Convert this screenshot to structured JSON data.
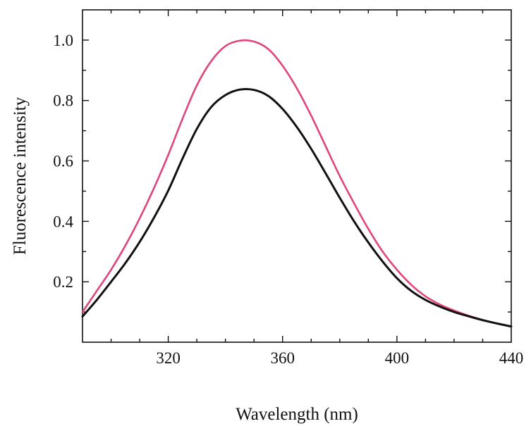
{
  "chart_data": {
    "type": "line",
    "title": "",
    "xlabel": "Wavelength (nm)",
    "ylabel": "Fluorescence intensity",
    "xlim": [
      290,
      440
    ],
    "ylim": [
      0,
      1.1
    ],
    "x_ticks": [
      320,
      360,
      400,
      440
    ],
    "x_tick_labels": [
      "320",
      "360",
      "400",
      "440"
    ],
    "x_minor_step": 10,
    "y_ticks": [
      0.2,
      0.4,
      0.6,
      0.8,
      1.0
    ],
    "y_tick_labels": [
      "0.2",
      "0.4",
      "0.6",
      "0.8",
      "1.0"
    ],
    "y_minor_step": 0.1,
    "grid": false,
    "legend": "none",
    "x": [
      290,
      295,
      300,
      305,
      310,
      315,
      320,
      325,
      330,
      335,
      340,
      345,
      350,
      355,
      360,
      365,
      370,
      375,
      380,
      385,
      390,
      395,
      400,
      405,
      410,
      415,
      420,
      425,
      430,
      435,
      440
    ],
    "series": [
      {
        "color": "#e0457f",
        "values": [
          0.1,
          0.17,
          0.24,
          0.32,
          0.41,
          0.51,
          0.62,
          0.74,
          0.85,
          0.93,
          0.98,
          0.998,
          0.995,
          0.97,
          0.915,
          0.84,
          0.75,
          0.65,
          0.55,
          0.46,
          0.375,
          0.3,
          0.24,
          0.19,
          0.152,
          0.125,
          0.105,
          0.088,
          0.074,
          0.062,
          0.052
        ]
      },
      {
        "color": "#111111",
        "values": [
          0.085,
          0.14,
          0.2,
          0.262,
          0.332,
          0.412,
          0.502,
          0.608,
          0.706,
          0.778,
          0.818,
          0.836,
          0.835,
          0.815,
          0.772,
          0.712,
          0.64,
          0.56,
          0.478,
          0.4,
          0.33,
          0.267,
          0.212,
          0.17,
          0.14,
          0.118,
          0.1,
          0.086,
          0.073,
          0.062,
          0.052
        ]
      }
    ]
  }
}
